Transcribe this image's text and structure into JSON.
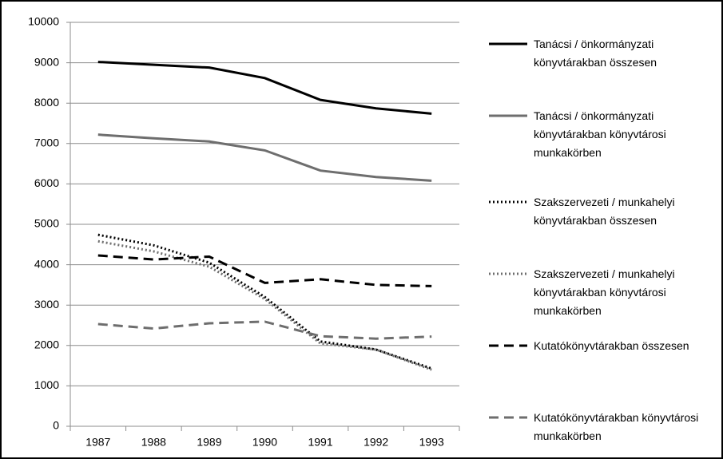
{
  "chart_data": {
    "type": "line",
    "categories": [
      "1987",
      "1988",
      "1989",
      "1990",
      "1991",
      "1992",
      "1993"
    ],
    "ylim": [
      0,
      10000
    ],
    "yticks": [
      0,
      1000,
      2000,
      3000,
      4000,
      5000,
      6000,
      7000,
      8000,
      9000,
      10000
    ],
    "grid": true,
    "legend": "right",
    "series": [
      {
        "name": "Tanácsi / önkormányzati könyvtárakban összesen",
        "color": "#000000",
        "style": "solid",
        "values": [
          9020,
          8950,
          8880,
          8620,
          8080,
          7870,
          7740
        ]
      },
      {
        "name": "Tanácsi / önkormányzati könyvtárakban könyvtárosi munkakörben",
        "color": "#6e6e6e",
        "style": "solid",
        "values": [
          7220,
          7130,
          7050,
          6830,
          6330,
          6170,
          6080
        ]
      },
      {
        "name": "Szakszervezeti / munkahelyi könyvtárakban összesen",
        "color": "#000000",
        "style": "dotted",
        "values": [
          4740,
          4480,
          4050,
          3200,
          2100,
          1900,
          1430
        ]
      },
      {
        "name": "Szakszervezeti / munkahelyi könyvtárakban könyvtárosi munkakörben",
        "color": "#6e6e6e",
        "style": "dotted",
        "values": [
          4580,
          4330,
          3950,
          3150,
          2050,
          1900,
          1400
        ]
      },
      {
        "name": "Kutatókönyvtárakban összesen",
        "color": "#000000",
        "style": "dashed",
        "values": [
          4230,
          4130,
          4200,
          3550,
          3640,
          3500,
          3470
        ]
      },
      {
        "name": "Kutatókönyvtárakban könyvtárosi munkakörben",
        "color": "#6e6e6e",
        "style": "dashed",
        "values": [
          2530,
          2420,
          2550,
          2590,
          2230,
          2170,
          2220
        ]
      }
    ]
  }
}
